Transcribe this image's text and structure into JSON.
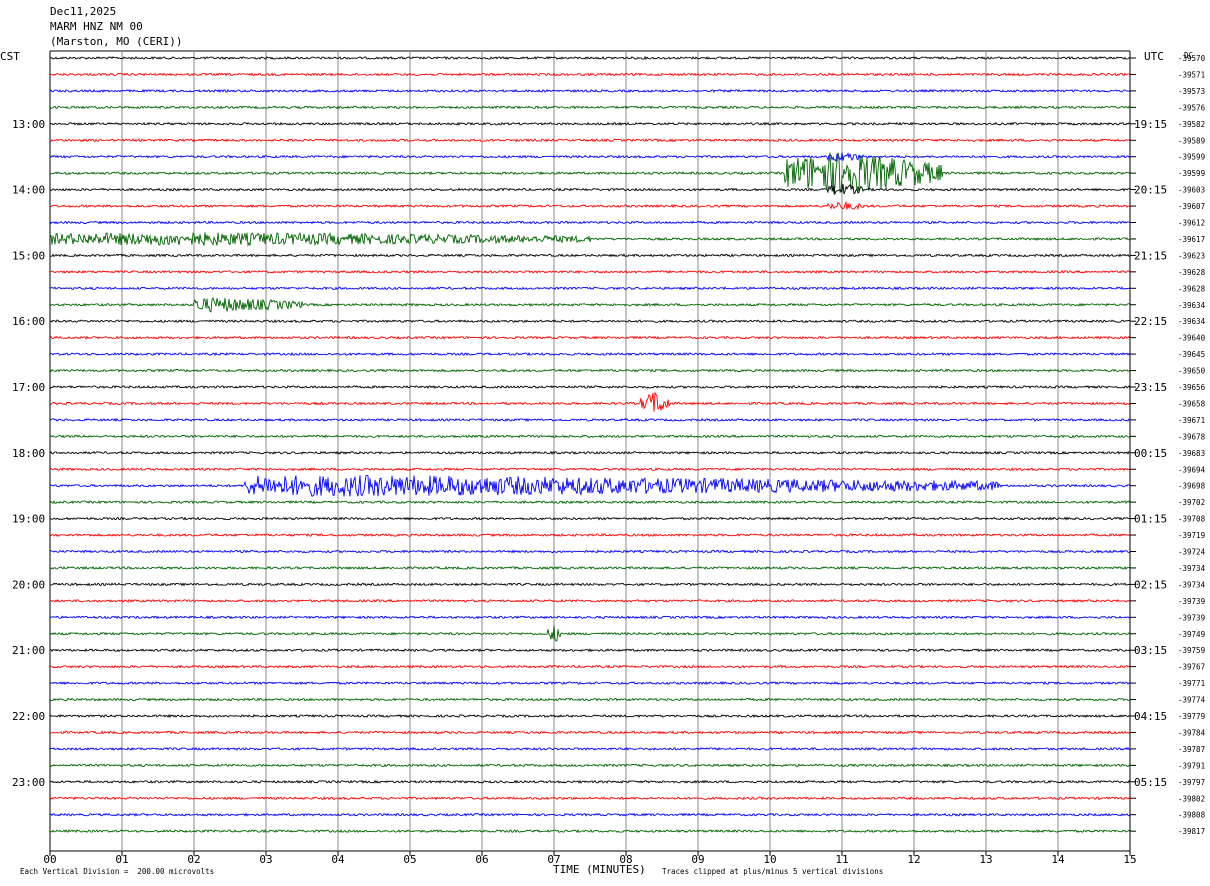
{
  "header": {
    "date": "Dec11,2025",
    "station": "MARM HNZ NM 00",
    "location": "(Marston, MO (CERI))"
  },
  "left_axis_label": "CST",
  "right_axis_label": "UTC",
  "right_corner_label": "DC",
  "footer": {
    "scale": "Each Vertical Division =  200.00 microvolts",
    "xtitle": "TIME (MINUTES)",
    "clip": "Traces clipped at plus/minus 5 vertical divisions"
  },
  "colors": {
    "trace_cycle": [
      "#000000",
      "#ff0000",
      "#0000ff",
      "#006400"
    ],
    "grid": "#888888"
  },
  "chart_data": {
    "type": "line",
    "title": "MARM HNZ NM 00",
    "xlabel": "TIME (MINUTES)",
    "xlim": [
      0,
      15
    ],
    "xticks": [
      "00",
      "01",
      "02",
      "03",
      "04",
      "05",
      "06",
      "07",
      "08",
      "09",
      "10",
      "11",
      "12",
      "13",
      "14",
      "15"
    ],
    "left_hour_labels": [
      "13:00",
      "14:00",
      "15:00",
      "16:00",
      "17:00",
      "18:00",
      "19:00",
      "20:00",
      "21:00",
      "22:00",
      "23:00"
    ],
    "right_hour_labels": [
      "19:15",
      "20:15",
      "21:15",
      "22:15",
      "23:15",
      "00:15",
      "01:15",
      "02:15",
      "03:15",
      "04:15",
      "05:15"
    ],
    "dc_offsets": [
      "-39570",
      "-39571",
      "-39573",
      "-39576",
      "-39582",
      "-39589",
      "-39599",
      "-39599",
      "-39603",
      "-39607",
      "-39612",
      "-39617",
      "-39623",
      "-39628",
      "-39628",
      "-39634",
      "-39634",
      "-39640",
      "-39645",
      "-39650",
      "-39656",
      "-39658",
      "-39671",
      "-39678",
      "-39683",
      "-39694",
      "-39698",
      "-39702",
      "-39708",
      "-39719",
      "-39724",
      "-39734",
      "-39734",
      "-39739",
      "-39739",
      "-39749",
      "-39759",
      "-39767",
      "-39771",
      "-39774",
      "-39779",
      "-39784",
      "-39787",
      "-39791",
      "-39797",
      "-39802",
      "-39808",
      "-39817"
    ],
    "trace_count": 48,
    "events": [
      {
        "trace": 7,
        "start_min": 10.2,
        "end_min": 12.4,
        "peak_min": 11.0,
        "amp": 2.6
      },
      {
        "trace": 6,
        "start_min": 10.8,
        "end_min": 11.3,
        "peak_min": 11.0,
        "amp": 0.5
      },
      {
        "trace": 8,
        "start_min": 10.8,
        "end_min": 11.3,
        "peak_min": 11.0,
        "amp": 0.6
      },
      {
        "trace": 9,
        "start_min": 10.8,
        "end_min": 11.3,
        "peak_min": 11.0,
        "amp": 0.4
      },
      {
        "trace": 11,
        "start_min": 0.0,
        "end_min": 7.5,
        "peak_min": 2.0,
        "amp": 0.7
      },
      {
        "trace": 15,
        "start_min": 2.0,
        "end_min": 3.5,
        "peak_min": 2.3,
        "amp": 0.8
      },
      {
        "trace": 21,
        "start_min": 8.2,
        "end_min": 8.6,
        "peak_min": 8.4,
        "amp": 1.4
      },
      {
        "trace": 26,
        "start_min": 2.7,
        "end_min": 13.2,
        "peak_min": 4.3,
        "amp": 1.2
      },
      {
        "trace": 35,
        "start_min": 6.9,
        "end_min": 7.1,
        "peak_min": 7.0,
        "amp": 1.0
      }
    ]
  }
}
